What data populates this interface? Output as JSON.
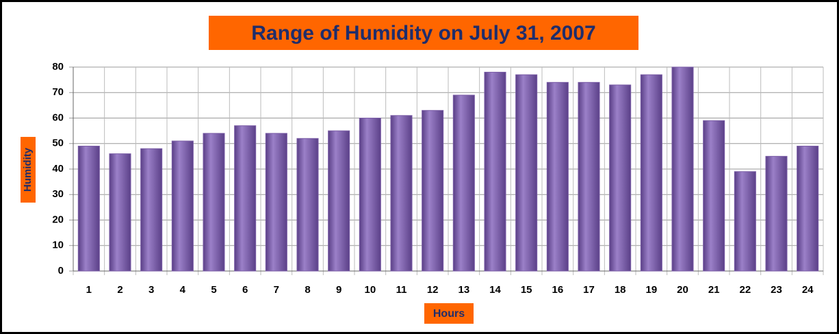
{
  "chart_data": {
    "type": "bar",
    "title": "Range of Humidity on July 31,  2007",
    "x_label": "Hours",
    "y_label": "Humidity",
    "categories": [
      "1",
      "2",
      "3",
      "4",
      "5",
      "6",
      "7",
      "8",
      "9",
      "10",
      "11",
      "12",
      "13",
      "14",
      "15",
      "16",
      "17",
      "18",
      "19",
      "20",
      "21",
      "22",
      "23",
      "24"
    ],
    "values": [
      49,
      46,
      48,
      51,
      54,
      57,
      54,
      52,
      55,
      60,
      61,
      63,
      69,
      78,
      77,
      74,
      74,
      73,
      77,
      80,
      59,
      39,
      45,
      49
    ],
    "color": "#7b5ea7",
    "ylim": [
      0,
      80
    ],
    "yticks": [
      0,
      10,
      20,
      30,
      40,
      50,
      60,
      70,
      80
    ],
    "grid": true
  }
}
